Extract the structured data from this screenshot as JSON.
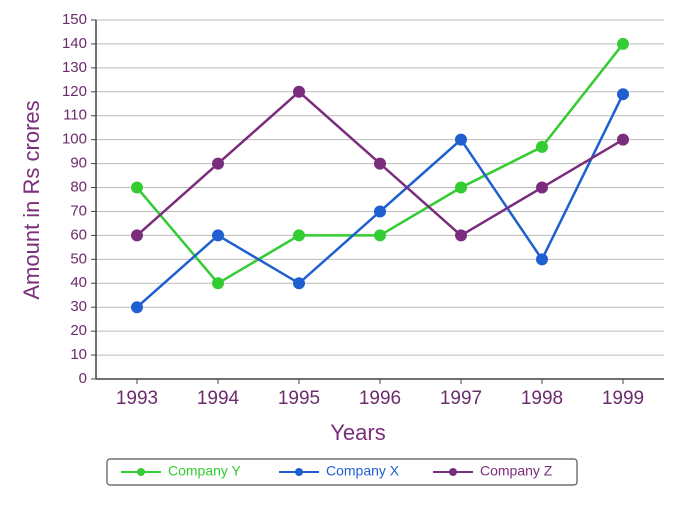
{
  "chart_data": {
    "type": "line",
    "x_label": "Years",
    "y_label": "Amount in Rs crores",
    "categories": [
      "1993",
      "1994",
      "1995",
      "1996",
      "1997",
      "1998",
      "1999"
    ],
    "series": [
      {
        "name": "Company Y",
        "color": "#33cc33",
        "values": [
          80,
          40,
          60,
          60,
          80,
          97,
          140
        ]
      },
      {
        "name": "Company X",
        "color": "#1f5fd0",
        "values": [
          30,
          60,
          40,
          70,
          100,
          50,
          119
        ]
      },
      {
        "name": "Company Z",
        "color": "#7b2d7d",
        "values": [
          60,
          90,
          120,
          90,
          60,
          80,
          100
        ]
      }
    ],
    "ylim": [
      0,
      150
    ],
    "yticks": [
      0,
      10,
      20,
      30,
      40,
      50,
      60,
      70,
      80,
      90,
      100,
      110,
      120,
      130,
      140,
      150
    ],
    "grid": true,
    "legend": "bottom"
  }
}
